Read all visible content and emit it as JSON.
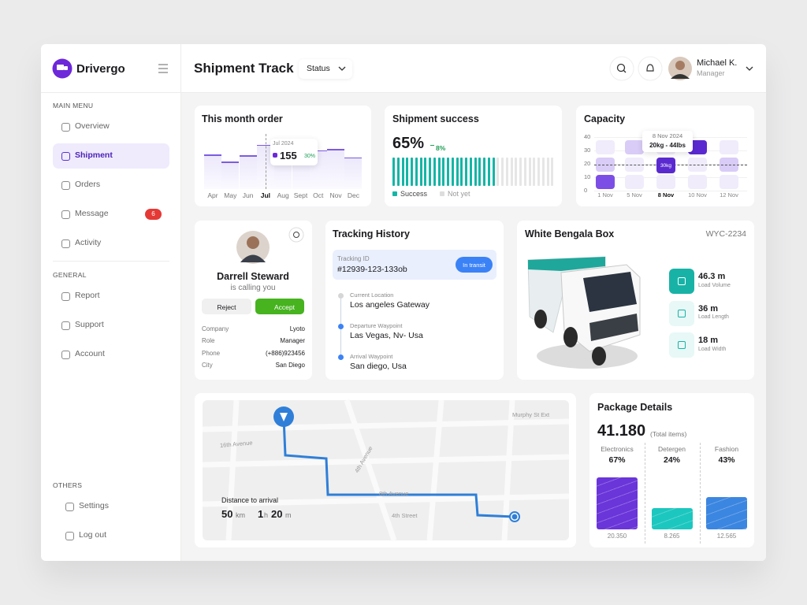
{
  "brand": "Drivergo",
  "sidebar": {
    "sections": [
      {
        "title": "MAIN MENU",
        "items": [
          {
            "label": "Overview"
          },
          {
            "label": "Shipment",
            "active": true
          },
          {
            "label": "Orders"
          },
          {
            "label": "Message",
            "badge": 6
          },
          {
            "label": "Activity"
          }
        ]
      },
      {
        "title": "GENERAL",
        "items": [
          {
            "label": "Report"
          },
          {
            "label": "Support"
          },
          {
            "label": "Account"
          }
        ]
      },
      {
        "title": "OTHERS",
        "items": [
          {
            "label": "Settings"
          },
          {
            "label": "Log out"
          }
        ]
      }
    ]
  },
  "header": {
    "title": "Shipment Track",
    "filter": "Status",
    "user": {
      "name": "Michael K.",
      "role": "Manager"
    }
  },
  "month_order": {
    "title": "This month order",
    "months": [
      "Apr",
      "May",
      "Jun",
      "Jul",
      "Aug",
      "Sept",
      "Oct",
      "Nov",
      "Dec"
    ],
    "values": [
      120,
      95,
      118,
      155,
      118,
      110,
      135,
      140,
      110
    ],
    "tooltip": {
      "period": "Jul 2024",
      "value": 155,
      "change": "30%"
    }
  },
  "shipment_success": {
    "title": "Shipment success",
    "rate": 65,
    "rate_label": "65%",
    "change": "8%",
    "legend": [
      "Success",
      "Not yet"
    ]
  },
  "capacity": {
    "title": "Capacity",
    "yticks": [
      0,
      10,
      20,
      30,
      40
    ],
    "dates": [
      "1 Nov",
      "5 Nov",
      "8 Nov",
      "10 Nov",
      "12 Nov"
    ],
    "tooltip": {
      "date": "8 Nov 2024",
      "value": "20kg - 44lbs"
    },
    "badge": "30kg"
  },
  "caller": {
    "name": "Darrell Steward",
    "status": "is calling you",
    "reject": "Reject",
    "accept": "Accept",
    "details": [
      {
        "label": "Company",
        "value": "Lyoto"
      },
      {
        "label": "Role",
        "value": "Manager"
      },
      {
        "label": "Phone",
        "value": "(+886)923456"
      },
      {
        "label": "City",
        "value": "San Diego"
      }
    ]
  },
  "tracking": {
    "title": "Tracking History",
    "id_label": "Tracking ID",
    "id": "#12939-123-133ob",
    "status": "In transit",
    "steps": [
      {
        "label": "Current Location",
        "place": "Los angeles Gateway"
      },
      {
        "label": "Departure Waypoint",
        "place": "Las Vegas, Nv- Usa"
      },
      {
        "label": "Arrival Waypoint",
        "place": "San diego, Usa"
      }
    ]
  },
  "vehicle": {
    "title": "White Bengala Box",
    "plate": "WYC-2234",
    "specs": [
      {
        "value": "46.3 m",
        "label": "Load Volume"
      },
      {
        "value": "36 m",
        "label": "Load Length"
      },
      {
        "value": "18 m",
        "label": "Load Width"
      }
    ]
  },
  "map": {
    "streets": [
      "16th Avenue",
      "4th Avenue",
      "8th Avenue",
      "Murphy St Ext",
      "4th Street"
    ],
    "distance": {
      "label": "Distance to arrival",
      "km": 50,
      "km_unit": "km",
      "hours": 1,
      "hours_unit": "h",
      "minutes": 20,
      "minutes_unit": "m"
    }
  },
  "package": {
    "title": "Package Details",
    "total": "41.180",
    "total_note": "(Total items)",
    "categories": [
      "Electronics",
      "Detergen",
      "Fashion"
    ],
    "shares": [
      "67%",
      "24%",
      "43%"
    ],
    "counts": [
      20350,
      8265,
      12565
    ],
    "count_labels": [
      "20.350",
      "8.265",
      "12.565"
    ],
    "colors": [
      "#6a35d9",
      "#1cc7bf",
      "#3b86e0"
    ]
  }
}
